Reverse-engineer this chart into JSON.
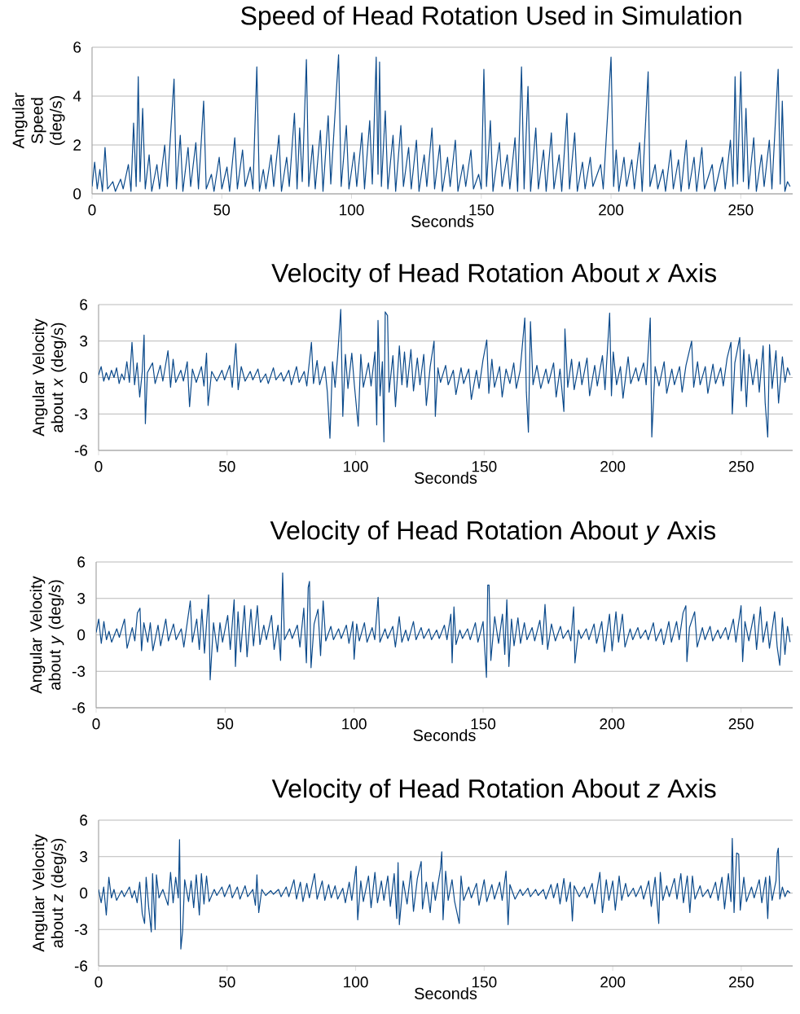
{
  "chart_data": [
    {
      "type": "line",
      "title": "Speed of Head Rotation Used in Simulation",
      "xlabel": "Seconds",
      "ylabel": "Angular Speed (deg/s)",
      "color": "#0b4a8b",
      "xlim": [
        0,
        270
      ],
      "ylim": [
        0,
        6
      ],
      "xticks": [
        0,
        50,
        100,
        150,
        200,
        250
      ],
      "yticks": [
        0,
        2,
        4,
        6
      ],
      "grid": "y",
      "x": [
        0,
        1,
        2,
        3,
        4,
        5,
        6,
        8,
        9,
        11,
        12,
        14,
        15,
        16,
        17,
        17.8,
        18.5,
        19.5,
        20.5,
        22,
        23,
        25,
        26,
        28,
        29,
        31.6,
        32.5,
        34,
        35,
        37,
        38,
        40,
        41,
        43,
        44,
        46,
        47,
        49,
        50,
        52,
        53,
        55,
        56,
        58,
        59,
        61,
        62,
        63.5,
        64.5,
        66,
        67,
        69,
        70,
        72,
        73,
        75,
        76,
        78,
        79,
        80,
        81,
        82.6,
        83.5,
        85,
        86,
        88,
        89,
        91,
        92,
        95,
        96,
        98,
        99,
        101,
        102,
        104,
        105,
        107,
        108,
        109.5,
        110.2,
        110.8,
        111.5,
        113,
        114,
        116,
        117,
        119,
        120,
        122,
        123,
        125,
        126,
        128,
        129,
        131,
        132,
        134,
        135,
        137,
        138,
        140,
        141,
        143,
        144,
        146,
        147,
        149,
        150,
        151,
        152,
        153.5,
        154.5,
        157,
        158,
        160,
        161,
        163,
        164,
        165.5,
        166.5,
        168,
        169,
        171,
        172,
        174,
        175,
        177,
        178,
        180,
        181,
        183,
        184,
        186,
        187,
        189,
        190,
        192,
        193,
        196,
        197,
        200,
        201,
        202,
        203,
        205,
        206,
        208,
        209,
        211,
        212,
        214.3,
        215,
        217,
        218,
        220,
        221,
        223,
        224,
        226,
        227,
        229,
        230,
        232,
        233,
        235,
        236,
        239,
        240,
        243,
        244,
        246,
        247,
        247.8,
        248.7,
        250,
        251,
        252,
        253,
        255,
        256,
        258,
        259,
        261,
        262,
        264.4,
        265.2,
        266,
        267,
        268,
        269
      ],
      "values": [
        0.3,
        1.3,
        0.2,
        1.0,
        0.1,
        1.9,
        0.2,
        0.5,
        0.1,
        0.6,
        0.2,
        1.2,
        0.1,
        2.9,
        0.3,
        4.8,
        0.5,
        3.5,
        0.2,
        1.6,
        0.1,
        1.2,
        0.2,
        2.0,
        0.3,
        4.7,
        0.2,
        2.4,
        0.1,
        1.9,
        0.3,
        2.1,
        0.2,
        3.8,
        0.2,
        0.8,
        0.1,
        1.5,
        0.2,
        1.1,
        0.1,
        2.3,
        0.2,
        1.8,
        0.3,
        1.1,
        0.2,
        5.2,
        0.1,
        1.0,
        0.2,
        1.6,
        0.3,
        2.4,
        0.1,
        1.5,
        0.3,
        3.3,
        0.2,
        2.7,
        0.5,
        5.5,
        0.3,
        2.0,
        0.2,
        2.6,
        0.1,
        3.2,
        0.4,
        5.7,
        0.3,
        2.8,
        0.2,
        1.7,
        0.3,
        2.5,
        0.2,
        3.0,
        0.4,
        5.6,
        0.8,
        5.4,
        0.3,
        3.4,
        0.2,
        2.4,
        0.1,
        2.8,
        0.3,
        1.9,
        0.2,
        2.2,
        0.1,
        1.6,
        0.3,
        2.7,
        0.2,
        2.0,
        0.1,
        1.5,
        0.3,
        2.2,
        0.1,
        1.2,
        0.3,
        1.8,
        0.2,
        0.8,
        0.2,
        5.1,
        0.3,
        3.0,
        0.1,
        2.1,
        0.3,
        1.6,
        0.2,
        2.3,
        0.1,
        5.2,
        0.2,
        4.4,
        0.1,
        2.7,
        0.2,
        1.8,
        0.1,
        2.5,
        0.2,
        1.6,
        0.1,
        3.3,
        0.2,
        2.5,
        0.1,
        1.3,
        0.2,
        1.5,
        0.3,
        1.2,
        0.2,
        5.6,
        0.3,
        1.8,
        0.1,
        1.5,
        0.3,
        1.4,
        0.2,
        2.1,
        0.1,
        5.0,
        0.3,
        1.2,
        0.2,
        1.0,
        0.1,
        1.8,
        0.2,
        1.4,
        0.1,
        2.2,
        0.2,
        1.5,
        0.1,
        1.9,
        0.2,
        1.2,
        0.1,
        1.5,
        0.2,
        2.2,
        0.3,
        4.8,
        0.4,
        5.0,
        0.5,
        3.5,
        0.2,
        2.3,
        0.1,
        1.6,
        0.3,
        2.2,
        0.2,
        5.1,
        0.4,
        3.8,
        0.1,
        0.5,
        0.3
      ]
    },
    {
      "type": "line",
      "title": "Velocity of Head Rotation About *x* Axis",
      "xlabel": "Seconds",
      "ylabel": "Angular Velocity about *x* (deg/s)",
      "color": "#0b4a8b",
      "xlim": [
        0,
        270
      ],
      "ylim": [
        -6,
        6
      ],
      "xticks": [
        0,
        50,
        100,
        150,
        200,
        250
      ],
      "yticks": [
        -6,
        -3,
        0,
        3,
        6
      ],
      "grid": "y",
      "x": [
        0,
        1,
        2,
        3,
        4,
        5,
        6,
        7,
        8,
        9,
        10,
        11,
        12,
        13,
        14,
        15,
        16,
        17,
        17.7,
        18.2,
        19,
        21,
        22,
        24,
        25,
        27,
        28,
        29,
        30,
        32,
        33,
        34.5,
        35.4,
        36.5,
        38,
        40,
        41,
        42,
        42.6,
        44,
        46,
        48,
        49,
        51,
        52,
        53.4,
        54.3,
        55.5,
        57,
        59,
        60,
        62,
        63,
        65,
        66,
        68,
        69,
        71,
        72,
        74,
        75,
        77,
        78,
        80,
        81,
        82.8,
        83.6,
        85,
        86,
        88,
        89,
        90,
        91,
        92,
        93,
        94.2,
        95,
        96,
        97,
        98.5,
        99.5,
        101,
        102,
        103,
        105,
        106,
        107.5,
        108.2,
        108.7,
        109.5,
        110.4,
        111,
        111.5,
        112.4,
        113,
        114.5,
        115.5,
        117,
        118,
        119,
        120,
        121.5,
        122.5,
        124,
        125,
        126.5,
        127.5,
        129,
        130.5,
        131,
        132,
        133,
        135,
        136,
        138,
        139,
        141,
        142,
        144,
        145,
        147,
        148,
        149.5,
        151,
        151.8,
        153,
        154,
        156,
        157,
        158.5,
        160,
        161.5,
        162.5,
        164,
        165.8,
        166.4,
        167.2,
        168,
        169,
        170.5,
        172,
        174,
        175,
        177,
        178,
        179.5,
        181,
        181.4,
        182.5,
        184,
        185,
        187,
        188,
        190,
        191,
        193,
        194,
        196,
        197,
        198.8,
        199.5,
        200.2,
        201.5,
        203,
        204,
        206,
        207,
        209,
        210,
        212,
        213,
        214.6,
        215.2,
        216.5,
        218,
        220,
        221,
        223,
        224,
        226,
        227,
        228.5,
        230.7,
        231.5,
        233,
        234,
        236,
        237,
        239,
        240,
        242,
        243,
        244.5,
        246,
        246.5,
        247.5,
        249.4,
        250,
        251,
        252,
        253,
        254.5,
        256,
        257,
        258.5,
        259.3,
        260.3,
        261,
        262,
        263.5,
        264.5,
        266,
        267,
        268,
        269
      ],
      "values": [
        0.2,
        0.9,
        -0.3,
        0.4,
        -0.2,
        0.6,
        0.0,
        0.8,
        -0.5,
        0.3,
        -0.2,
        1.3,
        -0.4,
        2.9,
        -0.6,
        1.2,
        -1.6,
        0.5,
        3.5,
        -3.8,
        0.4,
        1.2,
        -0.5,
        1.0,
        -0.3,
        2.2,
        -0.8,
        1.5,
        -0.4,
        0.6,
        -0.3,
        1.3,
        -2.4,
        0.7,
        -0.4,
        0.9,
        -0.7,
        2.0,
        -2.3,
        0.5,
        -0.3,
        0.6,
        -0.2,
        1.0,
        -0.8,
        2.8,
        -1.0,
        0.9,
        -0.3,
        0.5,
        -0.2,
        0.7,
        -0.4,
        0.3,
        -0.5,
        0.8,
        -0.2,
        0.4,
        -0.3,
        0.6,
        -0.6,
        0.9,
        -0.4,
        0.5,
        -0.7,
        2.9,
        -0.5,
        1.4,
        -0.6,
        0.9,
        -1.2,
        -5.0,
        1.3,
        -0.8,
        1.8,
        5.6,
        -3.2,
        1.9,
        -0.9,
        2.0,
        -0.6,
        -4.0,
        1.9,
        -0.8,
        1.2,
        -0.7,
        2.1,
        -3.9,
        4.7,
        -1.5,
        1.3,
        -5.3,
        5.4,
        5.1,
        -1.2,
        1.8,
        -2.4,
        2.6,
        -0.6,
        2.1,
        -0.8,
        2.3,
        -1.1,
        1.6,
        -0.6,
        1.9,
        -2.3,
        0.9,
        3.0,
        -3.2,
        0.8,
        -0.4,
        1.0,
        -0.6,
        0.6,
        -1.4,
        0.8,
        -0.5,
        0.7,
        -1.8,
        0.6,
        -0.9,
        1.4,
        3.1,
        -1.3,
        1.5,
        -0.8,
        0.9,
        -1.6,
        0.7,
        -0.5,
        1.2,
        -0.9,
        0.6,
        4.9,
        -1.2,
        -4.5,
        4.6,
        -0.6,
        1.0,
        -0.9,
        0.7,
        -0.5,
        1.2,
        -1.6,
        0.7,
        -2.8,
        4.0,
        -0.8,
        1.5,
        -1.0,
        1.3,
        -0.6,
        1.6,
        -1.5,
        1.0,
        -0.7,
        1.8,
        -1.0,
        5.3,
        -1.5,
        2.1,
        -0.6,
        0.9,
        -1.7,
        1.7,
        -0.5,
        0.8,
        -0.3,
        1.2,
        -0.6,
        4.9,
        -4.9,
        0.9,
        -0.7,
        1.3,
        -1.3,
        0.7,
        -0.6,
        0.9,
        -1.2,
        1.0,
        3.0,
        -0.8,
        1.3,
        -0.6,
        0.9,
        -1.3,
        1.1,
        -0.5,
        0.8,
        -0.7,
        1.6,
        2.9,
        -3.0,
        1.2,
        3.3,
        -1.1,
        2.3,
        -2.4,
        1.9,
        -0.6,
        1.5,
        -1.2,
        2.6,
        -2.1,
        -4.9,
        2.7,
        -0.9,
        2.2,
        -2.1,
        1.7,
        -0.4,
        0.8,
        0.2
      ]
    },
    {
      "type": "line",
      "title": "Velocity of Head Rotation About *y* Axis",
      "xlabel": "Seconds",
      "ylabel": "Angular Velocity about *y* (deg/s)",
      "color": "#0b4a8b",
      "xlim": [
        0,
        270
      ],
      "ylim": [
        -6,
        6
      ],
      "xticks": [
        0,
        50,
        100,
        150,
        200,
        250
      ],
      "yticks": [
        -6,
        -3,
        0,
        3,
        6
      ],
      "grid": "y",
      "x": [
        0,
        1,
        2,
        3,
        4,
        5,
        6,
        8,
        9,
        11,
        12,
        14,
        15,
        16,
        17,
        17.6,
        18.5,
        20,
        21,
        22,
        24,
        25,
        27,
        28,
        30,
        31,
        33,
        34,
        36.5,
        37.3,
        39,
        40,
        41,
        42,
        43.6,
        44.2,
        45.5,
        47,
        48,
        49,
        51,
        52,
        53.5,
        54,
        55,
        56,
        57.5,
        58.5,
        60,
        61,
        62.5,
        63.5,
        65,
        66,
        68,
        69,
        70.5,
        71.5,
        72.3,
        73,
        75,
        76,
        78,
        79,
        80.5,
        81.5,
        82.2,
        82.7,
        83.3,
        84.5,
        86,
        87,
        88,
        89,
        91,
        92,
        94,
        95,
        97,
        98,
        99.5,
        100,
        101,
        102,
        104,
        105,
        107,
        108,
        109.3,
        110,
        112,
        113,
        115,
        116,
        117.5,
        118.5,
        120,
        121,
        123,
        124,
        126,
        127,
        129,
        130,
        132,
        133,
        135,
        136,
        137.5,
        138,
        138.7,
        139.5,
        141,
        142,
        144,
        145,
        147,
        148,
        150,
        151.3,
        151.8,
        152.3,
        153,
        154.5,
        156,
        157.5,
        158.4,
        159.2,
        160,
        161,
        162,
        163.5,
        164.5,
        166,
        167,
        169,
        170,
        172,
        173,
        174,
        175,
        176.5,
        178,
        180,
        181,
        183,
        184,
        185.1,
        185.6,
        187,
        188,
        190,
        191,
        193,
        194,
        196,
        197,
        199,
        200,
        201.5,
        202.5,
        204,
        205,
        207,
        208,
        210,
        211,
        213,
        214,
        216,
        217,
        219,
        220,
        222,
        223,
        225,
        226,
        227.5,
        228.6,
        229,
        230,
        232,
        233,
        235,
        236,
        238,
        239,
        241,
        242,
        244,
        245,
        247,
        248,
        250,
        250.6,
        251.5,
        253,
        255,
        256,
        257.5,
        258.5,
        260,
        261,
        263,
        264,
        265,
        266,
        267,
        268,
        269
      ],
      "values": [
        0.2,
        1.3,
        -0.7,
        1.1,
        -0.4,
        0.3,
        -0.6,
        0.5,
        -0.2,
        1.3,
        -1.1,
        0.6,
        -0.5,
        1.8,
        2.2,
        -1.3,
        1.0,
        -0.6,
        1.0,
        -1.3,
        0.8,
        -0.9,
        1.3,
        -0.5,
        0.9,
        -0.4,
        0.5,
        -1.0,
        2.8,
        -0.6,
        1.3,
        -1.2,
        2.1,
        -1.5,
        3.3,
        -3.7,
        1.0,
        -1.4,
        1.0,
        -0.6,
        1.6,
        -1.2,
        2.9,
        -2.6,
        1.9,
        -1.4,
        2.4,
        -1.8,
        2.1,
        -0.9,
        2.4,
        -0.8,
        0.8,
        -0.4,
        1.6,
        -1.2,
        0.8,
        -2.1,
        5.1,
        -0.4,
        0.5,
        -0.3,
        0.8,
        -1.0,
        2.2,
        -2.3,
        3.9,
        4.4,
        -2.7,
        0.9,
        2.1,
        -1.7,
        2.8,
        -0.5,
        0.7,
        -0.4,
        0.5,
        -0.3,
        0.8,
        -0.7,
        1.1,
        -2.0,
        0.9,
        -0.5,
        1.0,
        -0.6,
        0.6,
        -0.4,
        3.1,
        -0.6,
        0.5,
        -0.3,
        0.7,
        -1.0,
        1.5,
        -0.6,
        0.4,
        -0.5,
        1.1,
        -0.4,
        0.6,
        -0.3,
        0.5,
        -0.4,
        0.4,
        -0.3,
        0.8,
        -0.4,
        1.7,
        -2.3,
        2.3,
        -0.8,
        0.4,
        -0.3,
        0.5,
        -0.4,
        1.0,
        -0.6,
        1.1,
        -3.5,
        4.1,
        4.1,
        -2.1,
        1.5,
        -0.7,
        1.7,
        -1.6,
        2.9,
        -2.6,
        1.3,
        -0.9,
        1.4,
        -0.7,
        1.0,
        -0.4,
        0.6,
        -0.5,
        1.2,
        -0.8,
        2.5,
        -1.2,
        0.9,
        -0.5,
        0.7,
        -0.3,
        0.4,
        -0.5,
        2.3,
        -2.3,
        0.4,
        -0.3,
        0.5,
        -0.4,
        0.9,
        -0.7,
        1.1,
        -1.4,
        1.7,
        -1.3,
        1.9,
        -0.6,
        1.7,
        -1.0,
        0.5,
        -0.4,
        0.6,
        -0.3,
        0.4,
        -0.4,
        1.0,
        -0.5,
        0.5,
        -0.8,
        1.1,
        -0.6,
        1.1,
        -0.4,
        1.8,
        2.4,
        -2.2,
        0.6,
        1.9,
        -1.0,
        0.6,
        -0.4,
        0.7,
        -0.5,
        0.4,
        -0.3,
        0.6,
        -0.4,
        1.3,
        -0.6,
        2.4,
        -2.2,
        1.1,
        -0.5,
        1.7,
        -1.2,
        2.3,
        -0.6,
        1.1,
        -1.1,
        1.9,
        -1.0,
        -2.5,
        1.4,
        -1.6,
        0.7,
        -0.6
      ]
    },
    {
      "type": "line",
      "title": "Velocity of Head Rotation About *z* Axis",
      "xlabel": "Seconds",
      "ylabel": "Angular Velocity about *z* (deg/s)",
      "color": "#0b4a8b",
      "xlim": [
        0,
        270
      ],
      "ylim": [
        -6,
        6
      ],
      "xticks": [
        0,
        50,
        100,
        150,
        200,
        250
      ],
      "yticks": [
        -6,
        -3,
        0,
        3,
        6
      ],
      "grid": "y",
      "x": [
        0,
        1,
        2,
        3,
        4,
        5,
        6,
        7,
        9,
        10,
        12,
        13,
        14,
        15,
        16,
        17,
        17.9,
        18.5,
        19.5,
        20.5,
        21,
        22,
        22.5,
        23.5,
        25,
        27,
        28,
        29,
        30,
        31,
        31.5,
        32,
        32.7,
        33.5,
        35,
        36,
        37,
        38,
        39.2,
        40,
        41,
        42,
        43,
        45,
        46,
        48,
        49,
        51,
        52,
        54,
        55,
        57,
        58,
        60,
        61,
        61.6,
        62.3,
        63.5,
        65,
        67,
        68,
        70,
        71,
        73,
        74,
        76,
        77,
        78.5,
        79.5,
        81,
        82,
        84,
        85,
        87,
        88,
        89.5,
        90.5,
        92,
        93,
        95,
        96,
        97.5,
        98.5,
        100.2,
        100.8,
        102,
        103,
        105,
        106,
        107.5,
        108.5,
        110,
        111,
        112.5,
        113.5,
        115,
        116,
        116.5,
        117,
        118.5,
        120,
        121.5,
        122.5,
        124,
        125.5,
        126,
        127.5,
        129,
        130,
        131,
        133,
        133.5,
        134,
        135,
        136,
        137.5,
        138.5,
        140.3,
        141,
        142,
        144,
        145,
        147,
        148,
        150,
        151,
        153,
        154,
        156,
        157,
        158.5,
        159.3,
        160,
        162,
        164,
        165,
        167,
        168,
        170,
        171,
        173,
        174,
        176,
        177,
        178.5,
        179.5,
        181,
        182,
        183.5,
        184.3,
        185,
        187,
        189,
        190,
        192,
        193,
        195,
        196,
        197.5,
        198.5,
        200,
        201,
        202.5,
        203.5,
        205,
        206,
        208,
        209,
        211,
        212,
        214,
        215,
        216.5,
        217.9,
        218.5,
        219.5,
        221,
        222,
        224,
        225,
        226.5,
        227.5,
        229,
        230,
        231,
        232,
        234,
        235,
        237,
        238,
        240,
        241,
        242.5,
        243.5,
        245,
        246,
        246.5,
        247.2,
        248.2,
        249,
        249.6,
        251,
        252,
        254,
        255,
        257,
        258,
        259.5,
        260.3,
        261,
        262,
        263.5,
        264,
        264.4,
        265,
        266,
        267,
        268,
        269
      ],
      "values": [
        0.3,
        -0.8,
        0.5,
        -1.8,
        1.3,
        -0.4,
        0.3,
        -0.6,
        0.2,
        -0.3,
        0.5,
        -0.4,
        0.2,
        -0.8,
        0.9,
        -1.7,
        -2.5,
        1.3,
        -1.2,
        -3.2,
        1.6,
        -3.0,
        1.5,
        -0.4,
        0.3,
        -1.0,
        1.7,
        -0.8,
        1.3,
        -0.4,
        4.4,
        -4.6,
        -3.1,
        1.1,
        -0.7,
        1.0,
        -1.2,
        1.5,
        -1.8,
        1.6,
        -0.9,
        1.4,
        -0.7,
        0.3,
        -0.2,
        0.5,
        -0.3,
        0.7,
        -0.4,
        0.5,
        -0.5,
        0.6,
        -0.3,
        0.3,
        -1.0,
        1.5,
        -1.6,
        0.3,
        -0.2,
        0.2,
        -0.1,
        0.3,
        -0.3,
        0.5,
        -0.3,
        1.1,
        -0.5,
        0.9,
        -0.7,
        0.8,
        -0.4,
        1.6,
        -0.5,
        1.0,
        -0.6,
        0.7,
        -0.4,
        0.6,
        -0.5,
        0.4,
        -0.8,
        0.9,
        -0.6,
        2.2,
        -2.2,
        1.0,
        -0.7,
        1.4,
        -1.2,
        1.7,
        -0.8,
        1.0,
        -0.6,
        1.4,
        -1.1,
        1.6,
        -2.1,
        2.5,
        -2.6,
        1.0,
        -0.9,
        1.8,
        -1.5,
        1.2,
        2.6,
        -1.3,
        0.9,
        -1.6,
        0.9,
        -0.6,
        2.0,
        3.4,
        -2.2,
        1.8,
        -0.6,
        1.1,
        -0.7,
        -2.5,
        1.4,
        -0.6,
        0.5,
        -0.4,
        0.8,
        -1.0,
        1.1,
        -0.7,
        0.7,
        -0.5,
        0.9,
        -0.6,
        1.8,
        -2.6,
        0.7,
        -0.5,
        0.3,
        -0.2,
        0.4,
        -0.3,
        0.3,
        -0.2,
        0.3,
        -0.5,
        0.7,
        -0.4,
        0.8,
        -0.9,
        1.2,
        -0.7,
        0.9,
        -2.3,
        0.6,
        -0.3,
        0.5,
        -0.4,
        0.8,
        -0.9,
        1.7,
        -1.6,
        1.1,
        -0.6,
        1.0,
        -1.4,
        1.4,
        -0.6,
        0.8,
        -0.3,
        0.4,
        -0.3,
        0.6,
        -0.5,
        1.0,
        -1.1,
        1.3,
        -2.5,
        1.7,
        -0.6,
        0.6,
        -0.3,
        1.2,
        -0.5,
        1.6,
        -0.8,
        1.4,
        -1.6,
        1.4,
        -0.5,
        0.6,
        -0.3,
        0.3,
        -0.4,
        0.9,
        -0.6,
        1.3,
        -1.3,
        1.6,
        -0.7,
        4.5,
        -1.6,
        3.3,
        3.2,
        -1.4,
        1.3,
        -0.7,
        0.5,
        -0.4,
        1.1,
        -0.8,
        1.3,
        -2.1,
        1.4,
        -0.6,
        1.0,
        3.3,
        3.7,
        -0.5,
        0.5,
        -0.3,
        0.2,
        0.0
      ]
    }
  ]
}
